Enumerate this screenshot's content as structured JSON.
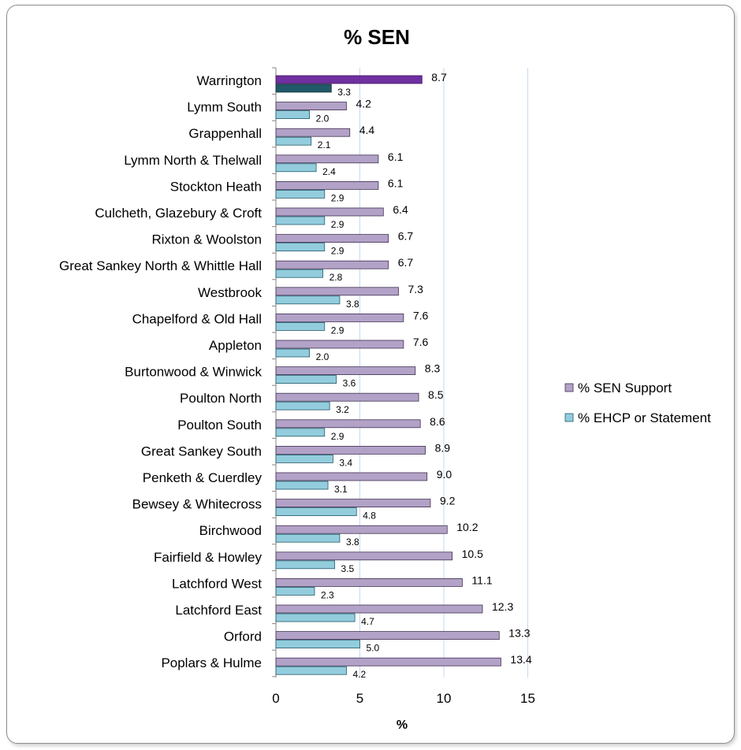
{
  "chart_data": {
    "type": "bar",
    "orientation": "horizontal",
    "title": "% SEN",
    "xlabel": "%",
    "ylabel": "",
    "xlim": [
      0,
      15
    ],
    "xticks": [
      0,
      5,
      10,
      15
    ],
    "grid": "vertical",
    "legend_position": "right",
    "categories": [
      "Warrington",
      "Lymm South",
      "Grappenhall",
      "Lymm North & Thelwall",
      "Stockton Heath",
      "Culcheth, Glazebury & Croft",
      "Rixton & Woolston",
      "Great Sankey North & Whittle Hall",
      "Westbrook",
      "Chapelford & Old Hall",
      "Appleton",
      "Burtonwood & Winwick",
      "Poulton North",
      "Poulton South",
      "Great Sankey South",
      "Penketh & Cuerdley",
      "Bewsey & Whitecross",
      "Birchwood",
      "Fairfield & Howley",
      "Latchford West",
      "Latchford East",
      "Orford",
      "Poplars & Hulme"
    ],
    "series": [
      {
        "name": "% SEN Support",
        "color": "#b3a2c7",
        "highlight_color": "#7030a0",
        "values": [
          8.7,
          4.2,
          4.4,
          6.1,
          6.1,
          6.4,
          6.7,
          6.7,
          7.3,
          7.6,
          7.6,
          8.3,
          8.5,
          8.6,
          8.9,
          9.0,
          9.2,
          10.2,
          10.5,
          11.1,
          12.3,
          13.3,
          13.4
        ],
        "labels": [
          "8.7",
          "4.2",
          "4.4",
          "6.1",
          "6.1",
          "6.4",
          "6.7",
          "6.7",
          "7.3",
          "7.6",
          "7.6",
          "8.3",
          "8.5",
          "8.6",
          "8.9",
          "9.0",
          "9.2",
          "10.2",
          "10.5",
          "11.1",
          "12.3",
          "13.3",
          "13.4"
        ]
      },
      {
        "name": "% EHCP or Statement",
        "color": "#93cddd",
        "highlight_color": "#215968",
        "values": [
          3.3,
          2.0,
          2.1,
          2.4,
          2.9,
          2.9,
          2.9,
          2.8,
          3.8,
          2.9,
          2.0,
          3.6,
          3.2,
          2.9,
          3.4,
          3.1,
          4.8,
          3.8,
          3.5,
          2.3,
          4.7,
          5.0,
          4.2
        ],
        "labels": [
          "3.3",
          "2.0",
          "2.1",
          "2.4",
          "2.9",
          "2.9",
          "2.9",
          "2.8",
          "3.8",
          "2.9",
          "2.0",
          "3.6",
          "3.2",
          "2.9",
          "3.4",
          "3.1",
          "4.8",
          "3.8",
          "3.5",
          "2.3",
          "4.7",
          "5.0",
          "4.2"
        ]
      }
    ],
    "highlight_category": "Warrington"
  }
}
